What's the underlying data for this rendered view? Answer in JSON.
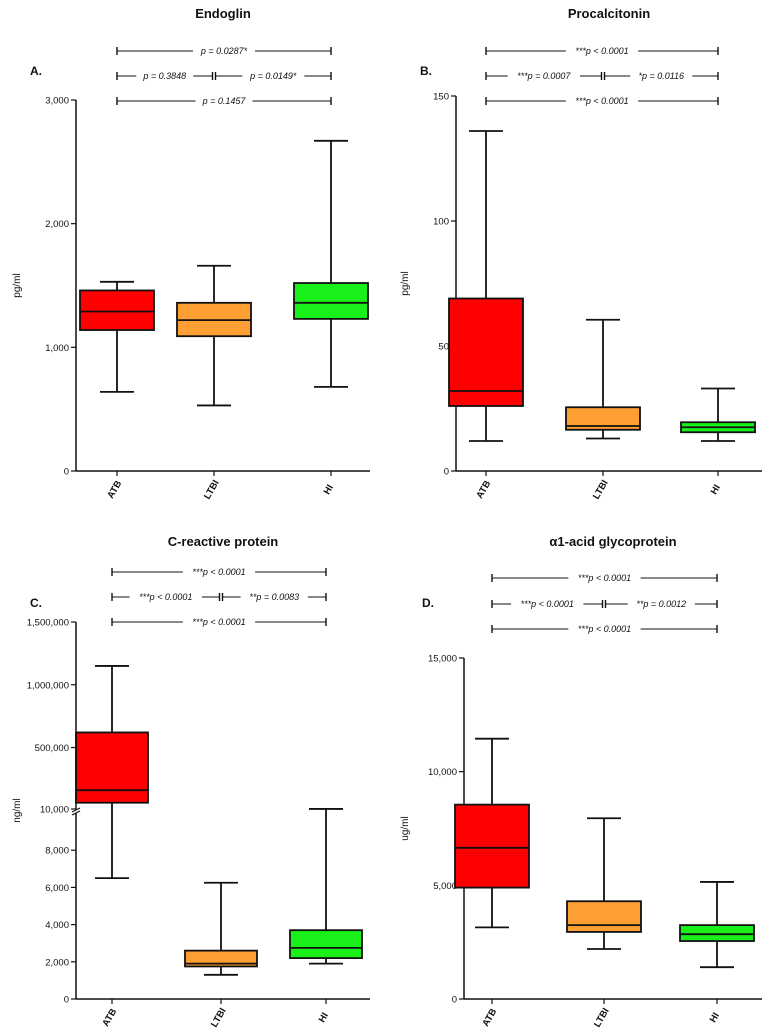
{
  "colors": {
    "ATB": "#ff0000",
    "LTBI": "#ff9f33",
    "HI": "#19f019",
    "axis": "#111111"
  },
  "chart_data": [
    {
      "type": "box",
      "panel": "A.",
      "title": "Endoglin",
      "ylabel": "pg/ml",
      "categories": [
        "ATB",
        "LTBI",
        "HI"
      ],
      "ylim": [
        0,
        3000
      ],
      "yticks": [
        0,
        1000,
        2000,
        3000
      ],
      "ytick_labels": [
        "0",
        "1,000",
        "2,000",
        "3,000"
      ],
      "boxes": [
        {
          "group": "ATB",
          "min": 640,
          "q1": 1140,
          "median": 1290,
          "q3": 1460,
          "max": 1530
        },
        {
          "group": "LTBI",
          "min": 530,
          "q1": 1090,
          "median": 1220,
          "q3": 1360,
          "max": 1660
        },
        {
          "group": "HI",
          "min": 680,
          "q1": 1230,
          "median": 1360,
          "q3": 1520,
          "max": 2670
        }
      ],
      "comparisons": [
        {
          "row": 0,
          "from": "ATB",
          "to": "HI",
          "label": "p = 0.0287*"
        },
        {
          "row": 1,
          "from": "ATB",
          "to": "LTBI",
          "label": "p = 0.3848",
          "split": true
        },
        {
          "row": 1,
          "from": "LTBI",
          "to": "HI",
          "label": "p = 0.0149*",
          "split": true
        },
        {
          "row": 2,
          "from": "ATB",
          "to": "HI",
          "label": "p = 0.1457"
        }
      ]
    },
    {
      "type": "box",
      "panel": "B.",
      "title": "Procalcitonin",
      "ylabel": "pg/ml",
      "categories": [
        "ATB",
        "LTBI",
        "HI"
      ],
      "ylim": [
        0,
        150
      ],
      "yticks": [
        0,
        50,
        100,
        150
      ],
      "ytick_labels": [
        "0",
        "50",
        "100",
        "150"
      ],
      "boxes": [
        {
          "group": "ATB",
          "min": 12,
          "q1": 26,
          "median": 32,
          "q3": 69,
          "max": 136
        },
        {
          "group": "LTBI",
          "min": 13,
          "q1": 16.5,
          "median": 18,
          "q3": 25.5,
          "max": 60.5
        },
        {
          "group": "HI",
          "min": 12,
          "q1": 15.5,
          "median": 17.5,
          "q3": 19.5,
          "max": 33
        }
      ],
      "comparisons": [
        {
          "row": 0,
          "from": "ATB",
          "to": "HI",
          "label": "***p < 0.0001"
        },
        {
          "row": 1,
          "from": "ATB",
          "to": "LTBI",
          "label": "***p = 0.0007",
          "split": true
        },
        {
          "row": 1,
          "from": "LTBI",
          "to": "HI",
          "label": "*p = 0.0116",
          "split": true
        },
        {
          "row": 2,
          "from": "ATB",
          "to": "HI",
          "label": "***p < 0.0001"
        }
      ]
    },
    {
      "type": "box",
      "panel": "C.",
      "title": "C-reactive protein",
      "ylabel": "ng/ml",
      "categories": [
        "ATB",
        "LTBI",
        "HI"
      ],
      "broken_axis": true,
      "lower_ylim": [
        0,
        10000
      ],
      "lower_yticks": [
        0,
        2000,
        4000,
        6000,
        8000,
        10000
      ],
      "lower_ytick_labels": [
        "0",
        "2,000",
        "4,000",
        "6,000",
        "8,000",
        "10,000"
      ],
      "upper_ylim": [
        10000,
        1500000
      ],
      "upper_yticks": [
        500000,
        1000000,
        1500000
      ],
      "upper_ytick_labels": [
        "500,000",
        "1,000,000",
        "1,500,000"
      ],
      "boxes": [
        {
          "group": "ATB",
          "min": 6500,
          "q1": 60000,
          "median": 160000,
          "q3": 620000,
          "max": 1150000
        },
        {
          "group": "LTBI",
          "min": 1300,
          "q1": 1750,
          "median": 1900,
          "q3": 2600,
          "max": 6250
        },
        {
          "group": "HI",
          "min": 1900,
          "q1": 2200,
          "median": 2750,
          "q3": 3700,
          "max": 10300
        }
      ],
      "comparisons": [
        {
          "row": 0,
          "from": "ATB",
          "to": "HI",
          "label": "***p < 0.0001"
        },
        {
          "row": 1,
          "from": "ATB",
          "to": "LTBI",
          "label": "***p < 0.0001",
          "split": true
        },
        {
          "row": 1,
          "from": "LTBI",
          "to": "HI",
          "label": "**p = 0.0083",
          "split": true
        },
        {
          "row": 2,
          "from": "ATB",
          "to": "HI",
          "label": "***p < 0.0001"
        }
      ]
    },
    {
      "type": "box",
      "panel": "D.",
      "title": "α1-acid glycoprotein",
      "ylabel": "ug/ml",
      "categories": [
        "ATB",
        "LTBI",
        "HI"
      ],
      "ylim": [
        0,
        15000
      ],
      "yticks": [
        0,
        5000,
        10000,
        15000
      ],
      "ytick_labels": [
        "0",
        "5,000",
        "10,000",
        "15,000"
      ],
      "boxes": [
        {
          "group": "ATB",
          "min": 3150,
          "q1": 4900,
          "median": 6650,
          "q3": 8550,
          "max": 11450
        },
        {
          "group": "LTBI",
          "min": 2200,
          "q1": 2950,
          "median": 3250,
          "q3": 4300,
          "max": 7950
        },
        {
          "group": "HI",
          "min": 1400,
          "q1": 2550,
          "median": 2850,
          "q3": 3250,
          "max": 5150
        }
      ],
      "comparisons": [
        {
          "row": 0,
          "from": "ATB",
          "to": "HI",
          "label": "***p < 0.0001"
        },
        {
          "row": 1,
          "from": "ATB",
          "to": "LTBI",
          "label": "***p < 0.0001",
          "split": true
        },
        {
          "row": 1,
          "from": "LTBI",
          "to": "HI",
          "label": "**p = 0.0012",
          "split": true
        },
        {
          "row": 2,
          "from": "ATB",
          "to": "HI",
          "label": "***p < 0.0001"
        }
      ]
    }
  ]
}
